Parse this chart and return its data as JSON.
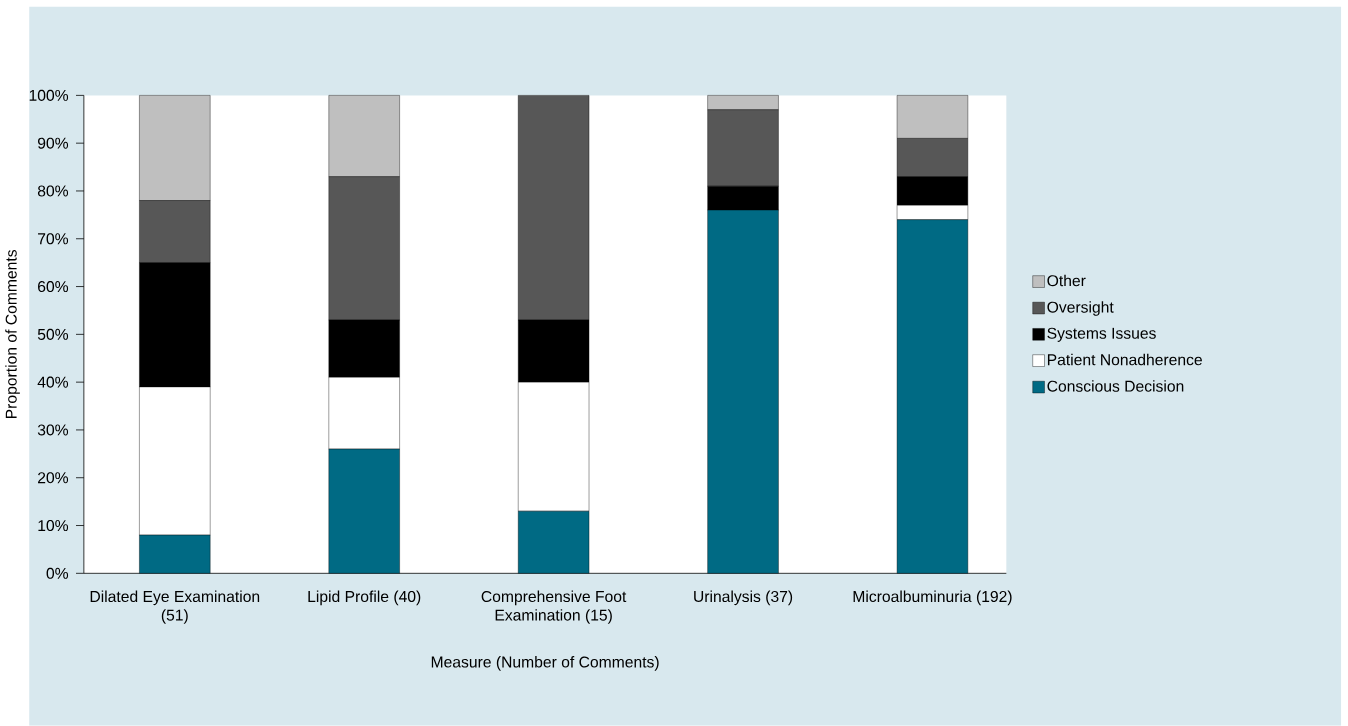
{
  "chart_data": {
    "type": "bar",
    "stacked": true,
    "xlabel": "Measure (Number of Comments)",
    "ylabel": "Proportion of Comments",
    "categories": [
      "Dilated Eye Examination (51)",
      "Lipid Profile (40)",
      "Comprehensive Foot Examination (15)",
      "Urinalysis (37)",
      "Microalbuminuria (192)"
    ],
    "series": [
      {
        "name": "Conscious Decision",
        "color": "#006a84",
        "values": [
          8,
          26,
          13,
          76,
          74
        ]
      },
      {
        "name": "Patient Nonadherence",
        "color": "#ffffff",
        "values": [
          31,
          15,
          27,
          0,
          3
        ]
      },
      {
        "name": "Systems Issues",
        "color": "#000000",
        "values": [
          26,
          12,
          13,
          5,
          6
        ]
      },
      {
        "name": "Oversight",
        "color": "#575757",
        "values": [
          13,
          30,
          47,
          16,
          8
        ]
      },
      {
        "name": "Other",
        "color": "#bfbfbf",
        "values": [
          22,
          17,
          0,
          3,
          9
        ]
      }
    ],
    "ylim": [
      0,
      100
    ],
    "yticks": [
      {
        "value": 0,
        "label": "0%"
      },
      {
        "value": 10,
        "label": "10%"
      },
      {
        "value": 20,
        "label": "20%"
      },
      {
        "value": 30,
        "label": "30%"
      },
      {
        "value": 40,
        "label": "40%"
      },
      {
        "value": 50,
        "label": "50%"
      },
      {
        "value": 60,
        "label": "60%"
      },
      {
        "value": 70,
        "label": "70%"
      },
      {
        "value": 80,
        "label": "80%"
      },
      {
        "value": 90,
        "label": "90%"
      },
      {
        "value": 100,
        "label": "100%"
      }
    ],
    "grid": false,
    "legend": "right"
  }
}
